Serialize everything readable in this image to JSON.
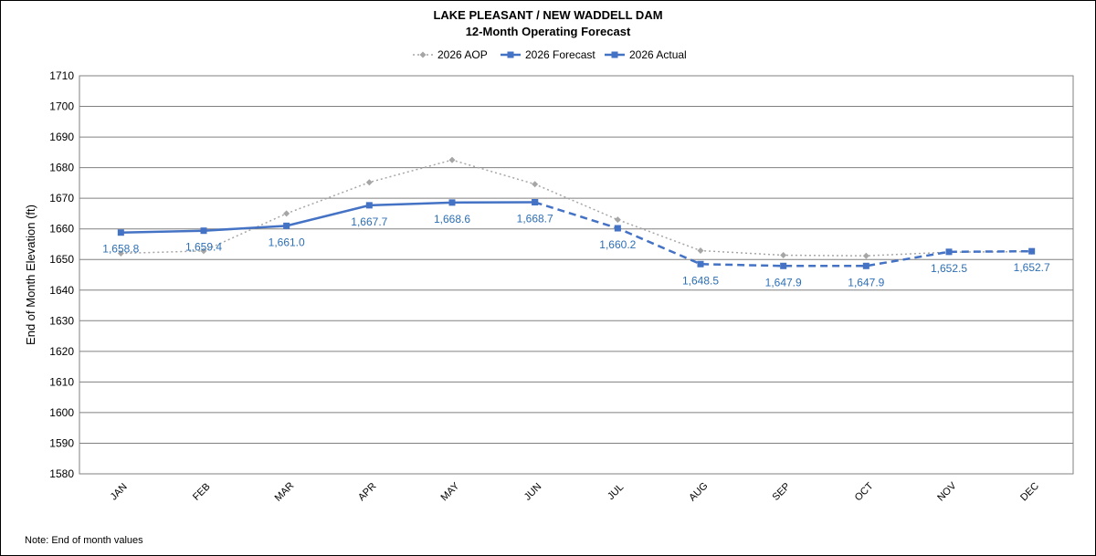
{
  "chart_data": {
    "type": "line",
    "title": "LAKE PLEASANT / NEW WADDELL DAM",
    "subtitle": "12-Month Operating Forecast",
    "ylabel": "End of Month Elevation (ft)",
    "xlabel": "",
    "ylim": [
      1580,
      1710
    ],
    "ytick_step": 10,
    "grid": true,
    "legend_position": "top",
    "categories": [
      "JAN",
      "FEB",
      "MAR",
      "APR",
      "MAY",
      "JUN",
      "JUL",
      "AUG",
      "SEP",
      "OCT",
      "NOV",
      "DEC"
    ],
    "series": [
      {
        "name": "2026 AOP",
        "color": "#a6a6a6",
        "style": "dotted",
        "marker": "diamond",
        "values": [
          1652.0,
          1652.8,
          1665.0,
          1675.2,
          1682.5,
          1674.6,
          1663.0,
          1652.9,
          1651.4,
          1651.2,
          1652.4,
          1652.6
        ]
      },
      {
        "name": "2026 Forecast",
        "color": "#4472c4",
        "style": "dashed",
        "marker": "square",
        "values": [
          null,
          null,
          null,
          null,
          null,
          1668.7,
          1660.2,
          1648.5,
          1647.9,
          1647.9,
          1652.5,
          1652.7
        ]
      },
      {
        "name": "2026 Actual",
        "color": "#4472c4",
        "style": "solid",
        "marker": "square",
        "values": [
          1658.8,
          1659.4,
          1661.0,
          1667.7,
          1668.6,
          1668.7,
          null,
          null,
          null,
          null,
          null,
          null
        ]
      }
    ],
    "data_labels": [
      "1,658.8",
      "1,659.4",
      "1,661.0",
      "1,667.7",
      "1,668.6",
      "1,668.7",
      "1,660.2",
      "1,648.5",
      "1,647.9",
      "1,647.9",
      "1,652.5",
      "1,652.7"
    ]
  },
  "note": "Note:   End of month values"
}
